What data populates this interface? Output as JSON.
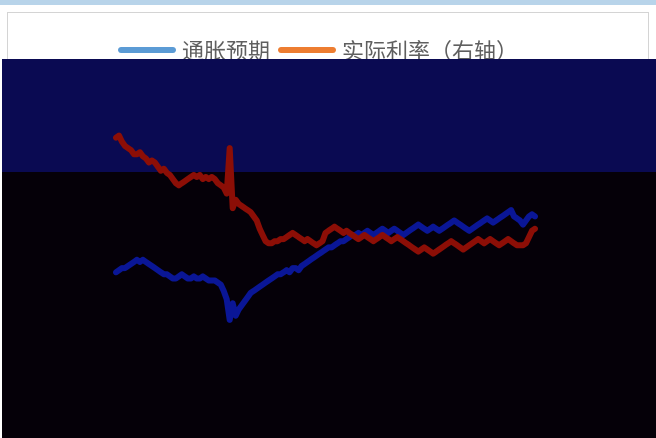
{
  "colors": {
    "legend_series_1": "#5b9bd5",
    "legend_series_2": "#ed7d31",
    "plot_background_upper": "#0a0a52",
    "plot_background_lower": "#050008",
    "series_1_line": "#0a1696",
    "series_2_line": "#8c0e06"
  },
  "chart_data": {
    "type": "line",
    "title": "",
    "xlabel": "",
    "ylabel": "",
    "legend_position": "top",
    "grid": false,
    "x": [
      0,
      1,
      2,
      3,
      4,
      5,
      6,
      7,
      8,
      9,
      10,
      11,
      12,
      13,
      14,
      15,
      16,
      17,
      18,
      19,
      20,
      21,
      22,
      23,
      24,
      25,
      26,
      27,
      28,
      29,
      30,
      31,
      32,
      33,
      34,
      35,
      36,
      37,
      38,
      39,
      40,
      41,
      42,
      43,
      44,
      45,
      46,
      47,
      48,
      49,
      50,
      51,
      52,
      53,
      54,
      55,
      56,
      57,
      58,
      59,
      60,
      61,
      62,
      63,
      64,
      65,
      66,
      67,
      68,
      69,
      70,
      71,
      72,
      73,
      74,
      75,
      76,
      77,
      78,
      79,
      80,
      81,
      82,
      83,
      84,
      85,
      86,
      87,
      88,
      89,
      90,
      91,
      92,
      93,
      94,
      95,
      96,
      97,
      98,
      99,
      100,
      101,
      102,
      103,
      104,
      105,
      106,
      107,
      108,
      109,
      110,
      111,
      112,
      113,
      114,
      115,
      116,
      117,
      118,
      119,
      120,
      121,
      122,
      123,
      124,
      125,
      126,
      127,
      128,
      129,
      130,
      131,
      132,
      133,
      134,
      135,
      136,
      137,
      138,
      139,
      140
    ],
    "series": [
      {
        "name": "通胀预期",
        "axis": "left",
        "values": [
          25,
          26,
          27,
          27,
          28,
          29,
          30,
          31,
          30,
          31,
          30,
          29,
          28,
          27,
          26,
          25,
          24,
          24,
          23,
          22,
          22,
          23,
          24,
          23,
          22,
          22,
          23,
          22,
          22,
          23,
          22,
          21,
          21,
          21,
          20,
          19,
          16,
          12,
          2,
          10,
          4,
          7,
          9,
          11,
          13,
          15,
          16,
          17,
          18,
          19,
          20,
          21,
          22,
          23,
          24,
          24,
          25,
          26,
          25,
          27,
          27,
          26,
          28,
          29,
          30,
          31,
          32,
          33,
          34,
          35,
          36,
          37,
          37,
          38,
          39,
          40,
          40,
          41,
          42,
          43,
          43,
          44,
          43,
          44,
          45,
          44,
          43,
          44,
          45,
          46,
          45,
          44,
          45,
          46,
          45,
          44,
          43,
          44,
          45,
          46,
          47,
          48,
          47,
          46,
          45,
          46,
          47,
          46,
          45,
          46,
          47,
          48,
          49,
          50,
          49,
          48,
          47,
          46,
          45,
          46,
          47,
          48,
          49,
          50,
          51,
          50,
          49,
          50,
          51,
          52,
          53,
          54,
          55,
          52,
          51,
          50,
          48,
          50,
          52,
          53,
          52
        ],
        "color": "#0a1696"
      },
      {
        "name": "实际利率（右轴）",
        "axis": "right",
        "values": [
          90,
          91,
          88,
          86,
          85,
          84,
          82,
          82,
          83,
          81,
          80,
          78,
          79,
          78,
          76,
          74,
          75,
          73,
          72,
          70,
          68,
          67,
          68,
          69,
          70,
          71,
          72,
          71,
          72,
          70,
          71,
          70,
          71,
          70,
          68,
          67,
          66,
          63,
          85,
          56,
          60,
          58,
          57,
          56,
          55,
          54,
          52,
          50,
          46,
          43,
          40,
          39,
          39,
          40,
          40,
          41,
          41,
          42,
          43,
          44,
          43,
          42,
          41,
          40,
          41,
          40,
          39,
          38,
          39,
          40,
          44,
          45,
          46,
          47,
          46,
          45,
          44,
          45,
          44,
          43,
          42,
          41,
          42,
          43,
          42,
          41,
          40,
          41,
          42,
          43,
          42,
          41,
          40,
          41,
          42,
          41,
          40,
          39,
          38,
          37,
          36,
          35,
          36,
          37,
          36,
          35,
          34,
          35,
          36,
          37,
          38,
          39,
          40,
          39,
          38,
          37,
          36,
          37,
          38,
          39,
          40,
          41,
          40,
          39,
          40,
          41,
          40,
          39,
          38,
          39,
          40,
          41,
          40,
          39,
          38,
          38,
          38,
          39,
          42,
          45,
          46
        ],
        "color": "#8c0e06"
      }
    ]
  }
}
